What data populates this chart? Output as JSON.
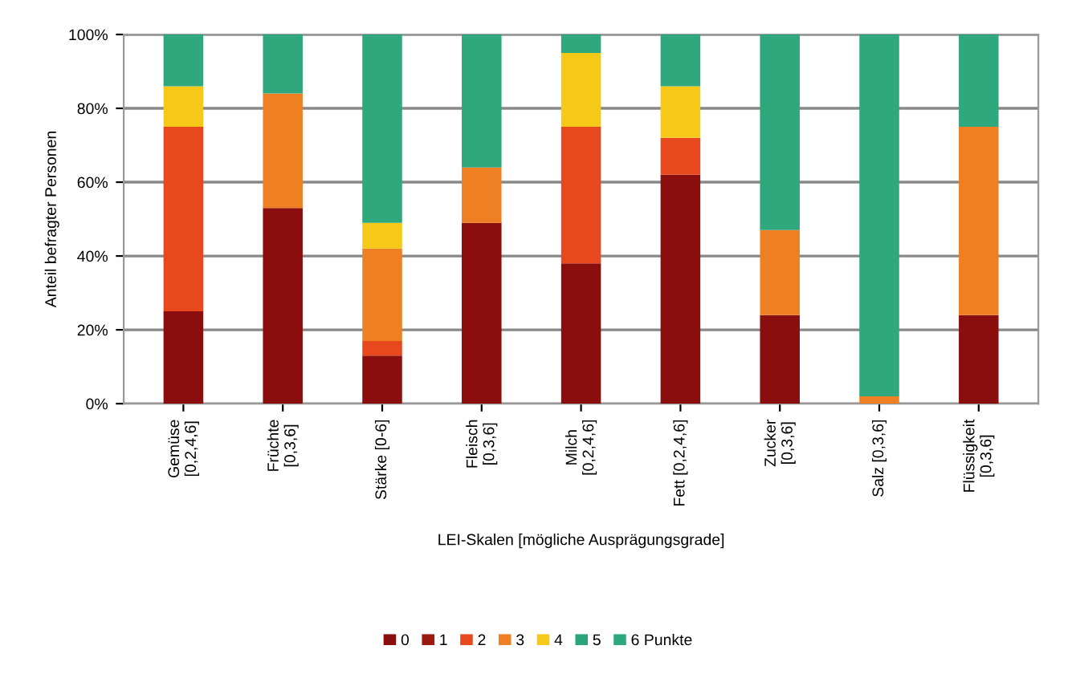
{
  "chart_data": {
    "type": "bar",
    "stacked": true,
    "ylabel": "Anteil befragter Personen",
    "xlabel": "LEI-Skalen [mögliche Ausprägungsgrade]",
    "categories": [
      "Gemüse\n[0,2,4,6]",
      "Früchte\n[0,3,6]",
      "Stärke [0-6]",
      "Fleisch\n[0,3,6]",
      "Milch\n[0,2,4,6]",
      "Fett [0,2,4,6]",
      "Zucker\n[0,3,6]",
      "Salz [0,3,6]",
      "Flüssigkeit\n[0,3,6]"
    ],
    "series": [
      {
        "name": "0",
        "color": "#8b0e0e",
        "values": [
          25,
          53,
          13,
          49,
          38,
          62,
          24,
          0,
          24
        ]
      },
      {
        "name": "1",
        "color": "#9a1a10",
        "values": [
          0,
          0,
          0,
          0,
          0,
          0,
          0,
          0,
          0
        ]
      },
      {
        "name": "2",
        "color": "#e8481e",
        "values": [
          50,
          0,
          4,
          0,
          37,
          10,
          0,
          0,
          0
        ]
      },
      {
        "name": "3",
        "color": "#ee7f22",
        "values": [
          0,
          31,
          25,
          15,
          0,
          0,
          23,
          2,
          51
        ]
      },
      {
        "name": "4",
        "color": "#f6c919",
        "values": [
          11,
          0,
          7,
          0,
          20,
          14,
          0,
          0,
          0
        ]
      },
      {
        "name": "5",
        "color": "#2aa57a",
        "values": [
          0,
          0,
          0,
          0,
          0,
          0,
          0,
          0,
          0
        ]
      },
      {
        "name": "6 Punkte",
        "color": "#2fa87e",
        "values": [
          14,
          16,
          51,
          36,
          5,
          14,
          53,
          98,
          25
        ]
      }
    ],
    "ylim": [
      0,
      100
    ],
    "yticks": [
      {
        "value": 0,
        "label": "0%"
      },
      {
        "value": 20,
        "label": "20%"
      },
      {
        "value": 40,
        "label": "40%"
      },
      {
        "value": 60,
        "label": "60%"
      },
      {
        "value": 80,
        "label": "80%"
      },
      {
        "value": 100,
        "label": "100%"
      }
    ],
    "grid": "y",
    "legend": "bottom"
  }
}
